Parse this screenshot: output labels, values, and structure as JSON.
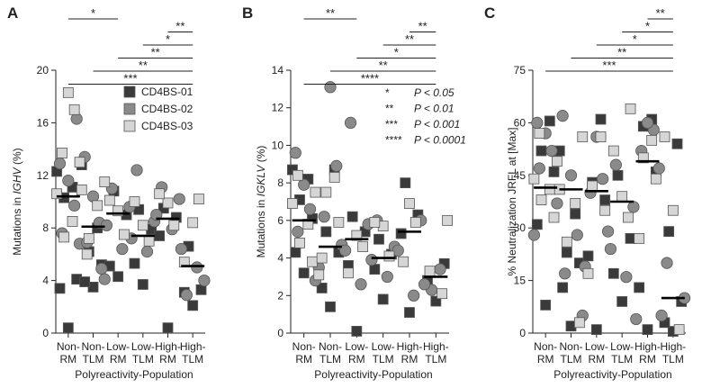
{
  "colors": {
    "CD4BS-01": "#3a3a3a",
    "CD4BS-02": "#8a8a8a",
    "CD4BS-03": "#d6d6d6",
    "stroke": "#555555",
    "axis": "#222222"
  },
  "categories": [
    "Non-RM",
    "Non-TLM",
    "Low-RM",
    "Low-TLM",
    "High-RM",
    "High-TLM"
  ],
  "category_lines": [
    [
      "Non-",
      "RM"
    ],
    [
      "Non-",
      "TLM"
    ],
    [
      "Low-",
      "RM"
    ],
    [
      "Low-",
      "TLM"
    ],
    [
      "High-",
      "RM"
    ],
    [
      "High-",
      "TLM"
    ]
  ],
  "legend": [
    "CD4BS-01",
    "CD4BS-02",
    "CD4BS-03"
  ],
  "pvalue_legend": [
    {
      "stars": "*",
      "text": "P < 0.05"
    },
    {
      "stars": "**",
      "text": "P < 0.01"
    },
    {
      "stars": "***",
      "text": "P < 0.001"
    },
    {
      "stars": "****",
      "text": "P < 0.0001"
    }
  ],
  "chart_data": [
    {
      "type": "scatter",
      "panel": "A",
      "xlabel": "Polyreactivity-Population",
      "ylabel_parts": [
        "Mutations in ",
        "IGHV",
        " (%)"
      ],
      "ylim": [
        0,
        20
      ],
      "yticks": [
        0,
        4,
        8,
        12,
        16,
        20
      ],
      "medians": [
        10.4,
        8.1,
        9.1,
        7.4,
        8.7,
        5.1
      ],
      "significance": [
        {
          "from": 0,
          "to": 2,
          "label": "*"
        },
        {
          "from": 4,
          "to": 5,
          "label": "**"
        },
        {
          "from": 3,
          "to": 5,
          "label": "*"
        },
        {
          "from": 2,
          "to": 5,
          "label": "**"
        },
        {
          "from": 1,
          "to": 5,
          "label": "**"
        },
        {
          "from": 0,
          "to": 5,
          "label": "***"
        }
      ],
      "series": [
        {
          "name": "CD4BS-01",
          "points": [
            [
              0,
              0.4
            ],
            [
              0,
              3.4
            ],
            [
              0,
              4.1
            ],
            [
              0,
              10.3
            ],
            [
              0,
              11.1
            ],
            [
              0,
              12.3
            ],
            [
              1,
              3.5
            ],
            [
              1,
              3.9
            ],
            [
              1,
              5.2
            ],
            [
              1,
              6.2
            ],
            [
              1,
              8.0
            ],
            [
              1,
              12.8
            ],
            [
              2,
              4.3
            ],
            [
              2,
              5.1
            ],
            [
              2,
              9.0
            ],
            [
              2,
              10.8
            ],
            [
              3,
              3.7
            ],
            [
              3,
              5.3
            ],
            [
              3,
              7.9
            ],
            [
              3,
              9.4
            ],
            [
              4,
              0.4
            ],
            [
              4,
              7.4
            ],
            [
              4,
              8.8
            ],
            [
              4,
              9.5
            ],
            [
              5,
              2.1
            ],
            [
              5,
              3.1
            ],
            [
              5,
              3.3
            ],
            [
              5,
              6.6
            ]
          ]
        },
        {
          "name": "CD4BS-02",
          "points": [
            [
              0,
              6.8
            ],
            [
              0,
              7.6
            ],
            [
              0,
              9.7
            ],
            [
              0,
              11.6
            ],
            [
              0,
              12.9
            ],
            [
              0,
              16.3
            ],
            [
              1,
              4.1
            ],
            [
              1,
              6.9
            ],
            [
              1,
              8.4
            ],
            [
              1,
              10.4
            ],
            [
              1,
              13.4
            ],
            [
              1,
              4.9
            ],
            [
              2,
              6.4
            ],
            [
              2,
              8.2
            ],
            [
              2,
              9.6
            ],
            [
              2,
              11.0
            ],
            [
              3,
              6.2
            ],
            [
              3,
              7.2
            ],
            [
              3,
              8.5
            ],
            [
              3,
              12.4
            ],
            [
              4,
              7.9
            ],
            [
              4,
              9.0
            ],
            [
              4,
              10.2
            ],
            [
              4,
              11.1
            ],
            [
              5,
              5.0
            ],
            [
              5,
              6.4
            ],
            [
              5,
              4.0
            ],
            [
              5,
              2.9
            ]
          ]
        },
        {
          "name": "CD4BS-03",
          "points": [
            [
              0,
              7.3
            ],
            [
              0,
              8.5
            ],
            [
              0,
              10.6
            ],
            [
              0,
              13.0
            ],
            [
              0,
              13.7
            ],
            [
              0,
              17.0
            ],
            [
              0,
              18.3
            ],
            [
              1,
              7.2
            ],
            [
              1,
              9.7
            ],
            [
              1,
              10.9
            ],
            [
              1,
              11.5
            ],
            [
              1,
              6.0
            ],
            [
              2,
              7.5
            ],
            [
              2,
              9.3
            ],
            [
              2,
              10.1
            ],
            [
              3,
              7.0
            ],
            [
              3,
              8.2
            ],
            [
              3,
              10.0
            ],
            [
              4,
              8.2
            ],
            [
              4,
              9.9
            ],
            [
              4,
              10.6
            ],
            [
              5,
              10.2
            ],
            [
              5,
              8.4
            ],
            [
              5,
              5.4
            ]
          ]
        }
      ]
    },
    {
      "type": "scatter",
      "panel": "B",
      "xlabel": "Polyreactivity-Population",
      "ylabel_parts": [
        "Mutations in ",
        "IGKLV",
        " (%)"
      ],
      "ylim": [
        0,
        14
      ],
      "yticks": [
        0,
        2,
        4,
        6,
        8,
        10,
        12,
        14
      ],
      "medians": [
        6.0,
        4.6,
        5.0,
        4.0,
        5.4,
        3.0
      ],
      "significance": [
        {
          "from": 0,
          "to": 2,
          "label": "**"
        },
        {
          "from": 4,
          "to": 5,
          "label": "**"
        },
        {
          "from": 3,
          "to": 5,
          "label": "**"
        },
        {
          "from": 2,
          "to": 5,
          "label": "*"
        },
        {
          "from": 1,
          "to": 5,
          "label": "**"
        },
        {
          "from": 0,
          "to": 5,
          "label": "****"
        }
      ],
      "series": [
        {
          "name": "CD4BS-01",
          "points": [
            [
              0,
              3.2
            ],
            [
              0,
              4.3
            ],
            [
              0,
              6.1
            ],
            [
              0,
              7.1
            ],
            [
              0,
              8.2
            ],
            [
              0,
              8.7
            ],
            [
              1,
              1.4
            ],
            [
              1,
              2.4
            ],
            [
              1,
              4.3
            ],
            [
              1,
              5.4
            ],
            [
              1,
              8.7
            ],
            [
              2,
              0.1
            ],
            [
              2,
              3.6
            ],
            [
              2,
              5.4
            ],
            [
              2,
              6.2
            ],
            [
              3,
              1.8
            ],
            [
              3,
              3.4
            ],
            [
              3,
              4.2
            ],
            [
              3,
              5.0
            ],
            [
              4,
              1.1
            ],
            [
              4,
              5.3
            ],
            [
              4,
              6.3
            ],
            [
              4,
              8.0
            ],
            [
              5,
              1.7
            ],
            [
              5,
              2.8
            ],
            [
              5,
              3.7
            ]
          ]
        },
        {
          "name": "CD4BS-02",
          "points": [
            [
              0,
              2.8
            ],
            [
              0,
              5.4
            ],
            [
              0,
              6.6
            ],
            [
              0,
              7.9
            ],
            [
              0,
              9.6
            ],
            [
              1,
              3.5
            ],
            [
              1,
              4.7
            ],
            [
              1,
              6.2
            ],
            [
              1,
              8.9
            ],
            [
              1,
              13.1
            ],
            [
              2,
              2.6
            ],
            [
              2,
              4.4
            ],
            [
              2,
              5.8
            ],
            [
              2,
              11.2
            ],
            [
              3,
              3.0
            ],
            [
              3,
              3.9
            ],
            [
              3,
              4.6
            ],
            [
              3,
              6.0
            ],
            [
              4,
              2.0
            ],
            [
              4,
              4.4
            ],
            [
              4,
              6.0
            ],
            [
              5,
              2.3
            ],
            [
              5,
              3.4
            ],
            [
              5,
              2.6
            ]
          ]
        },
        {
          "name": "CD4BS-03",
          "points": [
            [
              0,
              3.8
            ],
            [
              0,
              4.8
            ],
            [
              0,
              5.8
            ],
            [
              0,
              6.9
            ],
            [
              0,
              7.5
            ],
            [
              0,
              8.4
            ],
            [
              1,
              4.0
            ],
            [
              1,
              5.9
            ],
            [
              1,
              7.5
            ],
            [
              1,
              8.3
            ],
            [
              1,
              3.1
            ],
            [
              2,
              4.6
            ],
            [
              2,
              5.2
            ],
            [
              2,
              3.2
            ],
            [
              3,
              4.1
            ],
            [
              3,
              5.7
            ],
            [
              3,
              5.9
            ],
            [
              4,
              3.8
            ],
            [
              4,
              5.9
            ],
            [
              4,
              6.9
            ],
            [
              5,
              6.0
            ],
            [
              5,
              3.3
            ],
            [
              5,
              2.1
            ]
          ]
        }
      ]
    },
    {
      "type": "scatter",
      "panel": "C",
      "xlabel": "Polyreactivity-Population",
      "ylabel_parts": [
        "% Neutralization JRFL at [Max]"
      ],
      "ylim": [
        0,
        75
      ],
      "yticks": [
        0,
        15,
        30,
        45,
        60,
        75
      ],
      "medians": [
        41.5,
        41.0,
        40.5,
        37.5,
        49.0,
        10.0
      ],
      "significance": [
        {
          "from": 4,
          "to": 5,
          "label": "**"
        },
        {
          "from": 3,
          "to": 5,
          "label": "*"
        },
        {
          "from": 2,
          "to": 5,
          "label": "*"
        },
        {
          "from": 1,
          "to": 5,
          "label": "**"
        },
        {
          "from": 0,
          "to": 5,
          "label": "***"
        }
      ],
      "series": [
        {
          "name": "CD4BS-01",
          "points": [
            [
              0,
              8.0
            ],
            [
              0,
              31.0
            ],
            [
              0,
              46.0
            ],
            [
              0,
              52.0
            ],
            [
              0,
              60.5
            ],
            [
              1,
              2.0
            ],
            [
              1,
              13.0
            ],
            [
              1,
              20.0
            ],
            [
              1,
              23.0
            ],
            [
              1,
              34.0
            ],
            [
              1,
              52.0
            ],
            [
              2,
              1.0
            ],
            [
              2,
              22.0
            ],
            [
              2,
              38.0
            ],
            [
              2,
              43.0
            ],
            [
              2,
              61.0
            ],
            [
              3,
              9.0
            ],
            [
              3,
              17.0
            ],
            [
              3,
              27.0
            ],
            [
              3,
              45.0
            ],
            [
              4,
              1.0
            ],
            [
              4,
              13.0
            ],
            [
              4,
              46.0
            ],
            [
              4,
              59.0
            ],
            [
              4,
              61.0
            ],
            [
              5,
              0.5
            ],
            [
              5,
              3.0
            ],
            [
              5,
              9.0
            ],
            [
              5,
              29.0
            ],
            [
              5,
              54.0
            ]
          ]
        },
        {
          "name": "CD4BS-02",
          "points": [
            [
              0,
              28.0
            ],
            [
              0,
              37.0
            ],
            [
              0,
              47.0
            ],
            [
              0,
              52.0
            ],
            [
              0,
              57.0
            ],
            [
              0,
              60.0
            ],
            [
              1,
              5.0
            ],
            [
              1,
              17.0
            ],
            [
              1,
              28.0
            ],
            [
              1,
              45.0
            ],
            [
              1,
              62.0
            ],
            [
              2,
              19.0
            ],
            [
              2,
              29.0
            ],
            [
              2,
              40.0
            ],
            [
              2,
              44.0
            ],
            [
              2,
              56.0
            ],
            [
              3,
              16.0
            ],
            [
              3,
              24.0
            ],
            [
              3,
              36.0
            ],
            [
              3,
              48.0
            ],
            [
              4,
              4.0
            ],
            [
              4,
              47.0
            ],
            [
              4,
              52.0
            ],
            [
              4,
              58.0
            ],
            [
              4,
              60.0
            ],
            [
              5,
              5.0
            ],
            [
              5,
              10.0
            ],
            [
              5,
              20.0
            ]
          ]
        },
        {
          "name": "CD4BS-03",
          "points": [
            [
              0,
              33.0
            ],
            [
              0,
              38.0
            ],
            [
              0,
              41.0
            ],
            [
              0,
              44.0
            ],
            [
              0,
              49.0
            ],
            [
              0,
              57.0
            ],
            [
              1,
              3.0
            ],
            [
              1,
              26.0
            ],
            [
              1,
              37.0
            ],
            [
              1,
              41.0
            ],
            [
              1,
              56.0
            ],
            [
              2,
              17.0
            ],
            [
              2,
              35.0
            ],
            [
              2,
              42.0
            ],
            [
              2,
              56.0
            ],
            [
              3,
              33.0
            ],
            [
              3,
              39.0
            ],
            [
              3,
              52.0
            ],
            [
              3,
              64.0
            ],
            [
              4,
              27.0
            ],
            [
              4,
              44.0
            ],
            [
              4,
              50.0
            ],
            [
              4,
              55.0
            ],
            [
              5,
              1.0
            ],
            [
              5,
              35.0
            ],
            [
              5,
              56.0
            ]
          ]
        }
      ]
    }
  ]
}
